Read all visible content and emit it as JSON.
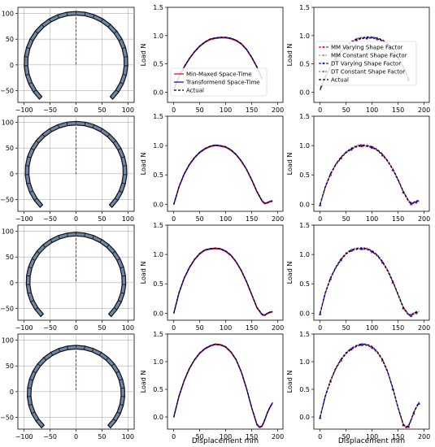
{
  "colors": {
    "mm": "#e8112d",
    "dt": "#1010d6",
    "actual": "#000000",
    "mesh_fill": "#6f88aa",
    "mesh_edge": "#111111",
    "centerline": "#e8112d",
    "grid": "#b0b0b0"
  },
  "chart_data": {
    "type": "line",
    "rows": 4,
    "columns": [
      "mesh",
      "space_time",
      "shape_factor"
    ],
    "shared": {
      "mesh_axes": {
        "xticks": [
          "−100",
          "−50",
          "0",
          "50",
          "100"
        ],
        "yticks": [
          "100",
          "50",
          "0",
          "−50"
        ],
        "xlim": [
          -112,
          112
        ],
        "ylim": [
          -73,
          112
        ],
        "grid": true
      },
      "load_axes": {
        "xticks": [
          "0",
          "50",
          "100",
          "150",
          "200"
        ],
        "xlim": [
          -12,
          210
        ],
        "ylabel": "Load N",
        "xlabel": "Displacement mm"
      },
      "yticks_rows": [
        [
          "0.0",
          "0.5",
          "1.0",
          "1.5"
        ],
        [
          "0.0",
          "0.5",
          "1.0",
          "1.5"
        ],
        [
          "0.0",
          "0.5",
          "1.0",
          "1.5"
        ],
        [
          "0.0",
          "0.5",
          "1.0",
          "1.5"
        ]
      ],
      "ylim_rows": [
        [
          -0.18,
          1.5
        ],
        [
          -0.12,
          1.5
        ],
        [
          -0.12,
          1.5
        ],
        [
          -0.22,
          1.5
        ]
      ]
    },
    "legends": {
      "space_time": [
        "Min-Maxed Space-Time",
        "Transformend Space-Time",
        "Actual"
      ],
      "shape_factor": [
        "MM Varying Shape Factor",
        "MM Constant Shape Factor",
        "DT Varying Shape Factor",
        "DT Constant Shape Factor",
        "Actual"
      ]
    },
    "mesh_rows": [
      {
        "top": 104,
        "radius": 100,
        "crown_tip": 0
      },
      {
        "top": 102,
        "radius": 98,
        "crown_tip": 0
      },
      {
        "top": 98,
        "radius": 96,
        "crown_tip": 0
      },
      {
        "top": 90,
        "radius": 94,
        "crown_tip": 0
      }
    ],
    "series": [
      {
        "row": 1,
        "x": [
          170,
          160,
          150,
          140,
          130,
          120,
          110,
          100,
          90,
          80,
          70,
          60,
          50,
          40,
          30,
          20,
          10,
          0
        ],
        "y": [
          0.24,
          0.45,
          0.62,
          0.76,
          0.86,
          0.92,
          0.955,
          0.97,
          0.97,
          0.96,
          0.94,
          0.89,
          0.82,
          0.72,
          0.6,
          0.45,
          0.28,
          0.05
        ]
      },
      {
        "row": 2,
        "x": [
          0,
          10,
          20,
          30,
          40,
          50,
          60,
          70,
          80,
          90,
          100,
          110,
          120,
          130,
          140,
          150,
          160,
          170,
          175,
          180,
          185,
          190
        ],
        "y": [
          0.0,
          0.3,
          0.52,
          0.68,
          0.8,
          0.89,
          0.95,
          0.99,
          1.01,
          1.0,
          0.98,
          0.93,
          0.85,
          0.74,
          0.6,
          0.42,
          0.22,
          0.06,
          0.02,
          0.03,
          0.05,
          0.06
        ]
      },
      {
        "row": 3,
        "x": [
          0,
          10,
          20,
          30,
          40,
          50,
          60,
          70,
          80,
          90,
          100,
          110,
          120,
          130,
          140,
          150,
          160,
          170,
          175,
          180,
          185,
          190
        ],
        "y": [
          0.0,
          0.35,
          0.6,
          0.78,
          0.92,
          1.02,
          1.08,
          1.1,
          1.11,
          1.1,
          1.06,
          0.99,
          0.88,
          0.73,
          0.54,
          0.32,
          0.1,
          -0.02,
          -0.03,
          0.0,
          0.02,
          0.03
        ]
      },
      {
        "row": 4,
        "x": [
          0,
          10,
          20,
          30,
          40,
          50,
          60,
          70,
          80,
          90,
          100,
          110,
          120,
          130,
          140,
          150,
          160,
          165,
          170,
          175,
          180,
          185,
          190
        ],
        "y": [
          0.0,
          0.38,
          0.66,
          0.88,
          1.04,
          1.16,
          1.24,
          1.29,
          1.32,
          1.31,
          1.27,
          1.18,
          1.04,
          0.82,
          0.52,
          0.17,
          -0.13,
          -0.18,
          -0.16,
          -0.05,
          0.08,
          0.18,
          0.26
        ]
      }
    ]
  }
}
